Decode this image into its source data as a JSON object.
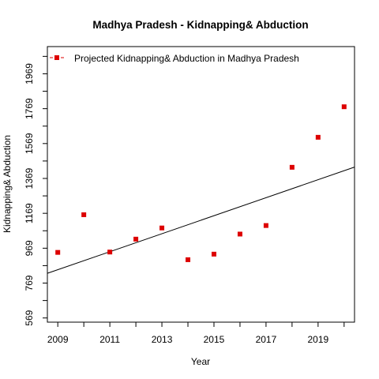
{
  "chart_data": {
    "type": "scatter",
    "title": "Madhya Pradesh  -  Kidnapping& Abduction",
    "xlabel": "Year",
    "ylabel": "Kidnapping& Abduction",
    "xlim": [
      2008.6,
      2020.4
    ],
    "ylim": [
      545,
      2125
    ],
    "x_ticks": [
      2009,
      2011,
      2013,
      2015,
      2017,
      2019
    ],
    "x_minor_ticks": [
      2009,
      2010,
      2011,
      2012,
      2013,
      2014,
      2015,
      2016,
      2017,
      2018,
      2019,
      2020
    ],
    "y_ticks": [
      569,
      769,
      969,
      1169,
      1369,
      1569,
      1769,
      1969
    ],
    "y_minor_ticks": [
      569,
      669,
      769,
      869,
      969,
      1069,
      1169,
      1269,
      1369,
      1469,
      1569,
      1669,
      1769,
      1869,
      1969,
      2069
    ],
    "series": [
      {
        "name": "Projected  Kidnapping& Abduction  in  Madhya Pradesh",
        "color": "#dd0000",
        "marker": "square",
        "x": [
          2009,
          2010,
          2011,
          2012,
          2013,
          2014,
          2015,
          2016,
          2017,
          2018,
          2019,
          2020
        ],
        "y": [
          945,
          1161,
          947,
          1021,
          1085,
          903,
          935,
          1050,
          1099,
          1433,
          1605,
          1780
        ]
      }
    ],
    "trend_line": {
      "x": [
        2008.6,
        2020.4
      ],
      "y": [
        825,
        1434
      ],
      "color": "#000000"
    },
    "legend_position": "top-left",
    "grid": false
  }
}
